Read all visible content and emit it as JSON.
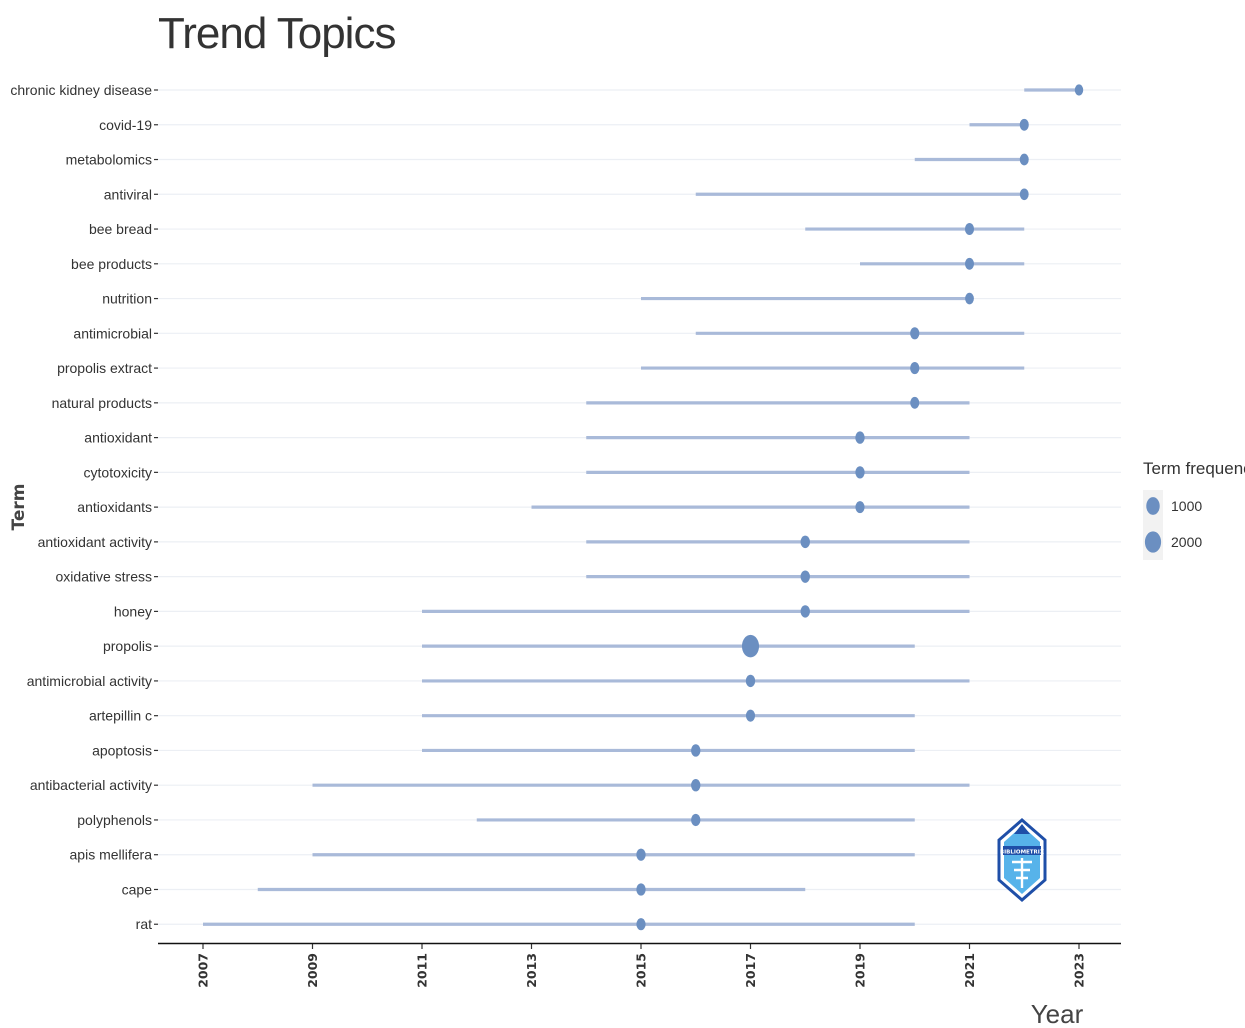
{
  "chart_data": {
    "type": "scatter",
    "title": "Trend Topics",
    "xlabel": "Year",
    "ylabel": "Term",
    "xlim": [
      2006.2,
      2023.8
    ],
    "xticks": [
      2007,
      2009,
      2011,
      2013,
      2015,
      2017,
      2019,
      2021,
      2023
    ],
    "grid": "horizontal",
    "legend": {
      "title": "Term frequency",
      "position": "right",
      "entries": [
        {
          "label": "1000",
          "value": 1000
        },
        {
          "label": "2000",
          "value": 2000
        }
      ]
    },
    "colors": {
      "point": "#6b8fc1",
      "range_line": "#a9bad9",
      "grid": "#eceff4",
      "axis": "#111111"
    },
    "terms": [
      {
        "term": "chronic kidney disease",
        "start": 2022,
        "end": 2023,
        "median": 2023,
        "freq": 60
      },
      {
        "term": "covid-19",
        "start": 2021,
        "end": 2022,
        "median": 2022,
        "freq": 110
      },
      {
        "term": "metabolomics",
        "start": 2020,
        "end": 2022,
        "median": 2022,
        "freq": 100
      },
      {
        "term": "antiviral",
        "start": 2016,
        "end": 2022,
        "median": 2022,
        "freq": 90
      },
      {
        "term": "bee bread",
        "start": 2018,
        "end": 2022,
        "median": 2021,
        "freq": 120
      },
      {
        "term": "bee products",
        "start": 2019,
        "end": 2022,
        "median": 2021,
        "freq": 110
      },
      {
        "term": "nutrition",
        "start": 2015,
        "end": 2021,
        "median": 2021,
        "freq": 90
      },
      {
        "term": "antimicrobial",
        "start": 2016,
        "end": 2022,
        "median": 2020,
        "freq": 130
      },
      {
        "term": "propolis extract",
        "start": 2015,
        "end": 2022,
        "median": 2020,
        "freq": 130
      },
      {
        "term": "natural products",
        "start": 2014,
        "end": 2021,
        "median": 2020,
        "freq": 110
      },
      {
        "term": "antioxidant",
        "start": 2014,
        "end": 2021,
        "median": 2019,
        "freq": 150
      },
      {
        "term": "cytotoxicity",
        "start": 2014,
        "end": 2021,
        "median": 2019,
        "freq": 140
      },
      {
        "term": "antioxidants",
        "start": 2013,
        "end": 2021,
        "median": 2019,
        "freq": 120
      },
      {
        "term": "antioxidant activity",
        "start": 2014,
        "end": 2021,
        "median": 2018,
        "freq": 160
      },
      {
        "term": "oxidative stress",
        "start": 2014,
        "end": 2021,
        "median": 2018,
        "freq": 150
      },
      {
        "term": "honey",
        "start": 2011,
        "end": 2021,
        "median": 2018,
        "freq": 150
      },
      {
        "term": "propolis",
        "start": 2011,
        "end": 2020,
        "median": 2017,
        "freq": 2400
      },
      {
        "term": "antimicrobial activity",
        "start": 2011,
        "end": 2021,
        "median": 2017,
        "freq": 150
      },
      {
        "term": "artepillin c",
        "start": 2011,
        "end": 2020,
        "median": 2017,
        "freq": 120
      },
      {
        "term": "apoptosis",
        "start": 2011,
        "end": 2020,
        "median": 2016,
        "freq": 150
      },
      {
        "term": "antibacterial activity",
        "start": 2009,
        "end": 2021,
        "median": 2016,
        "freq": 150
      },
      {
        "term": "polyphenols",
        "start": 2012,
        "end": 2020,
        "median": 2016,
        "freq": 140
      },
      {
        "term": "apis mellifera",
        "start": 2009,
        "end": 2020,
        "median": 2015,
        "freq": 140
      },
      {
        "term": "cape",
        "start": 2008,
        "end": 2018,
        "median": 2015,
        "freq": 140
      },
      {
        "term": "rat",
        "start": 2007,
        "end": 2020,
        "median": 2015,
        "freq": 130
      }
    ]
  },
  "watermark": {
    "text": "BIBLIOMETRIX",
    "colors": {
      "dark": "#1f4fa8",
      "light": "#39a6e6"
    }
  }
}
